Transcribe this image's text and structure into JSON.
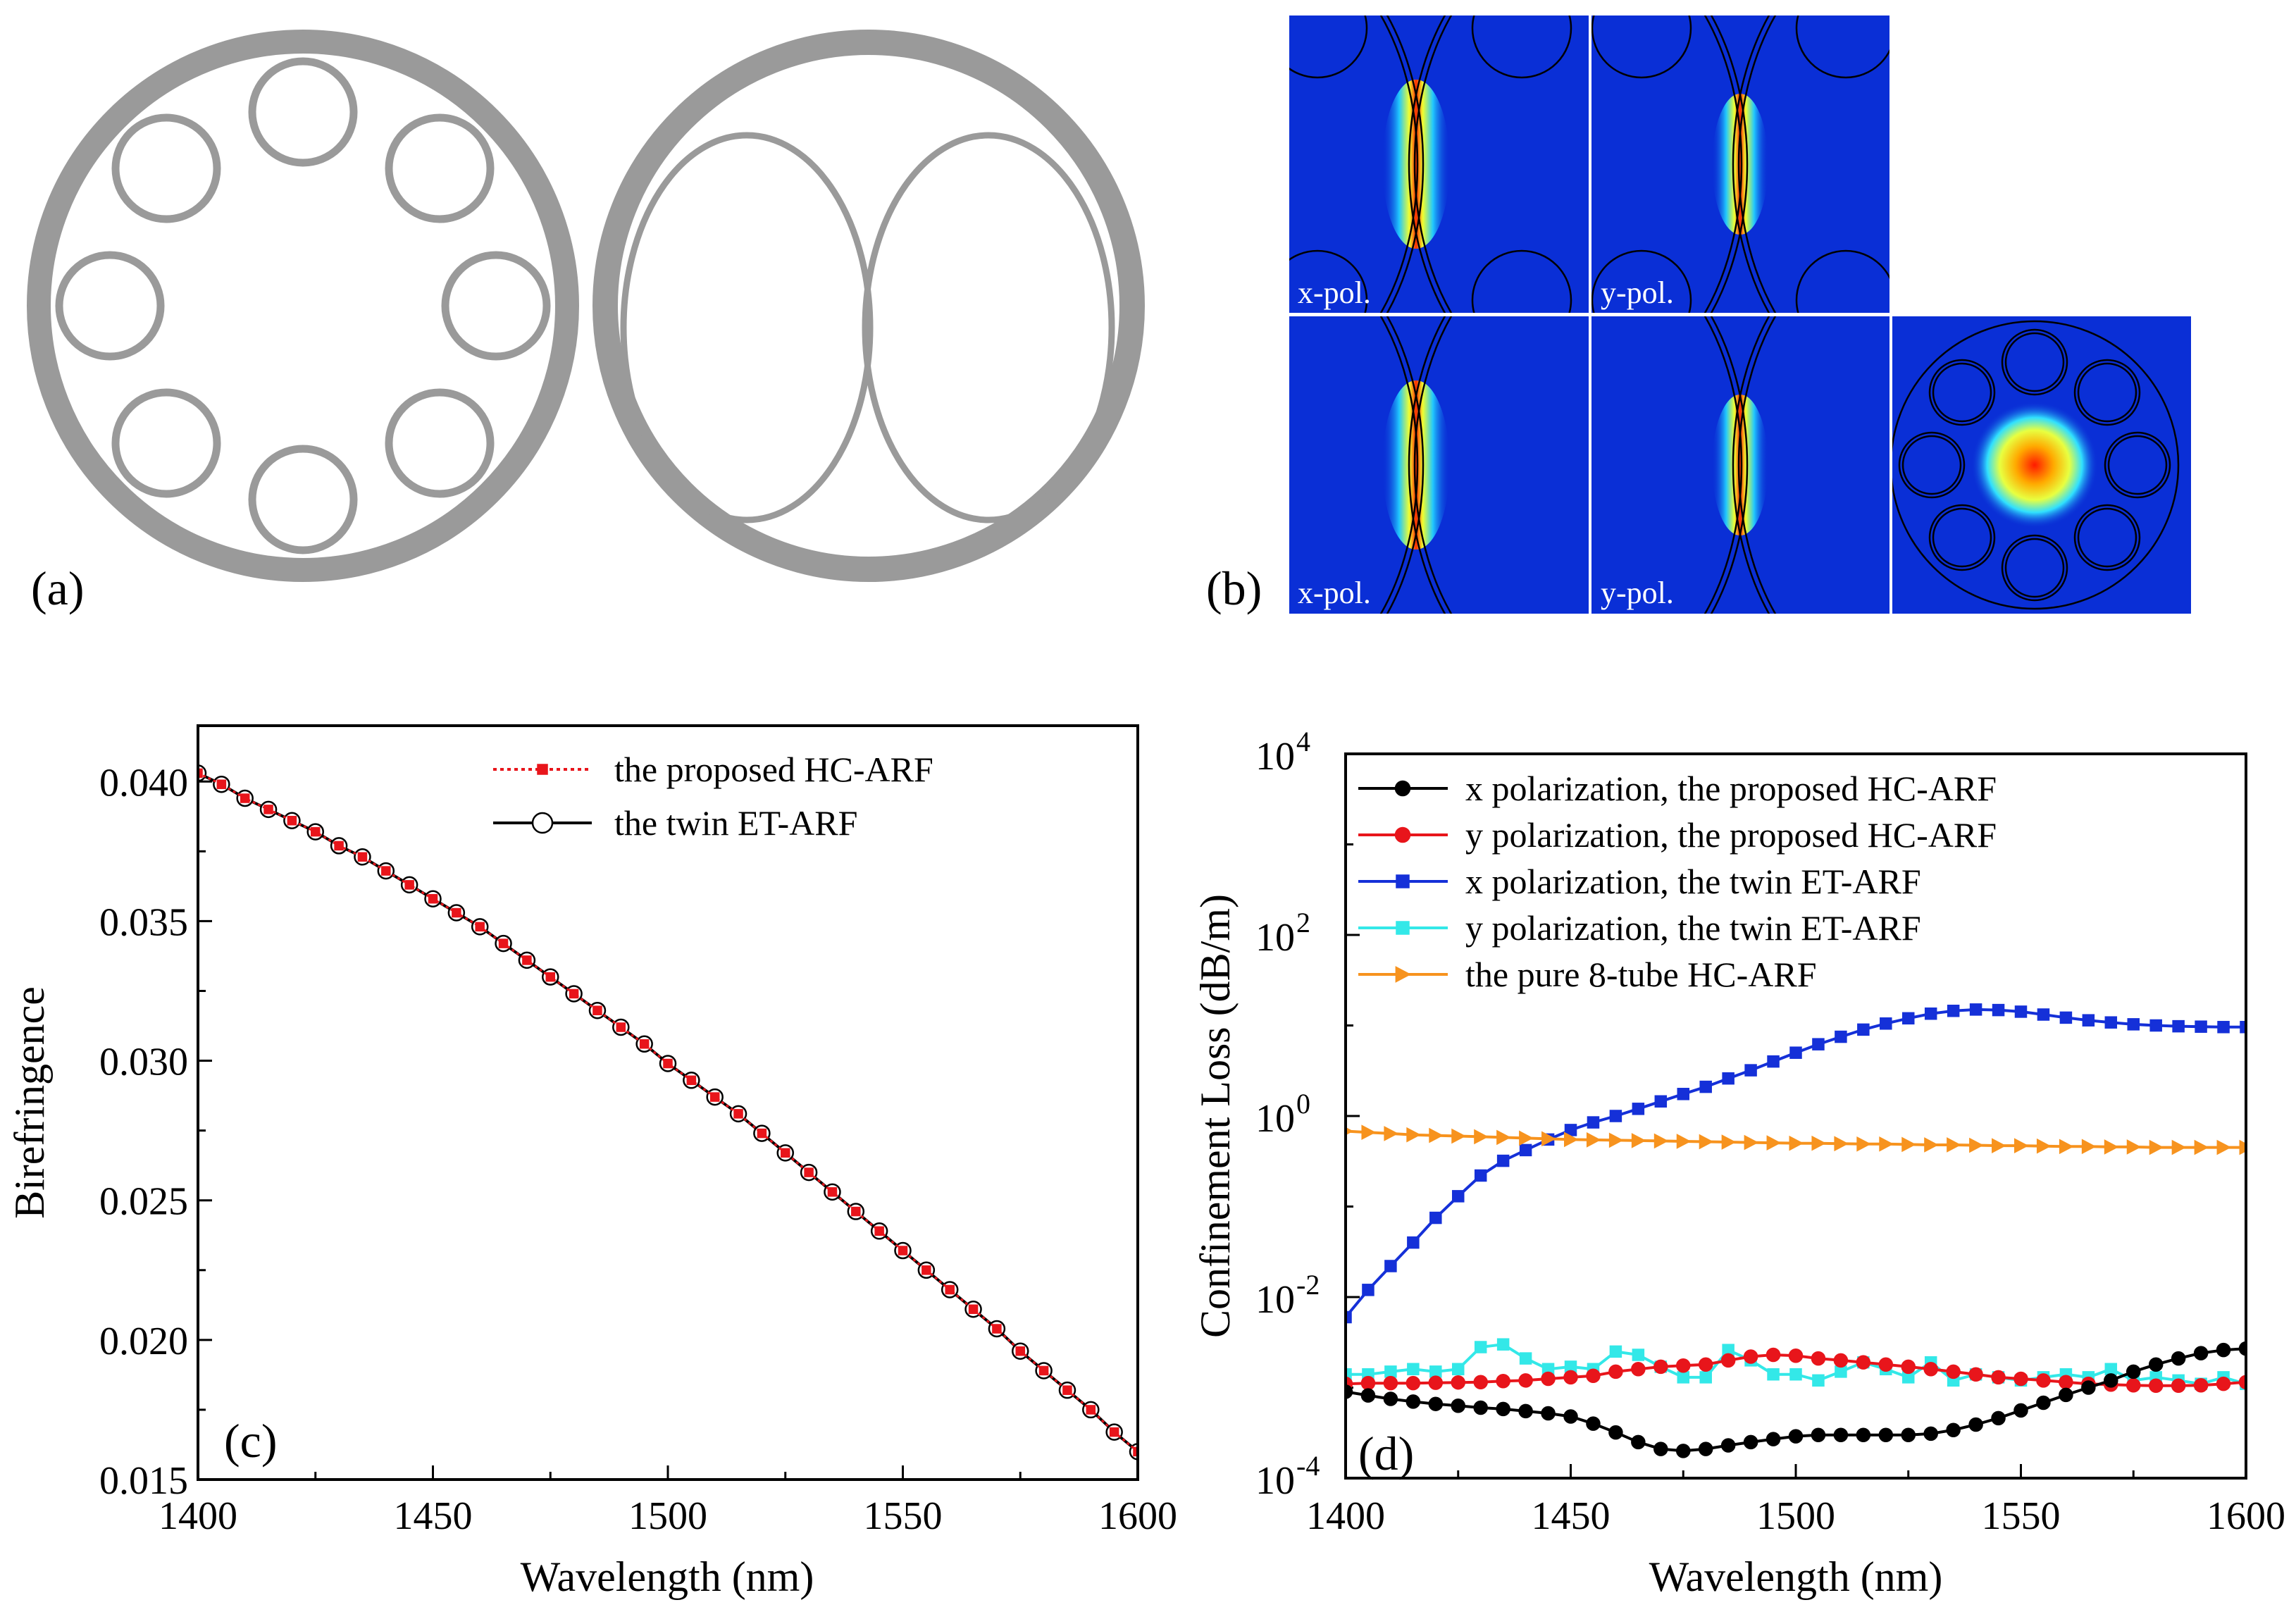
{
  "panels": {
    "a": {
      "label": "(a)"
    },
    "b": {
      "label": "(b)",
      "mode_labels": [
        "x-pol.",
        "y-pol.",
        "x-pol.",
        "y-pol."
      ]
    },
    "c": {
      "label": "(c)"
    },
    "d": {
      "label": "(d)"
    }
  },
  "colors": {
    "tube": "#9a9a9a",
    "field_bg": "#0a2fd6",
    "black": "#000000",
    "red": "#e8151b",
    "blue": "#1530d8",
    "cyan": "#33e8e8",
    "orange": "#f7931e"
  },
  "chart_data": [
    {
      "id": "c",
      "type": "line",
      "xlabel": "Wavelength (nm)",
      "ylabel": "Birefringence",
      "xlim": [
        1400,
        1600
      ],
      "ylim": [
        0.015,
        0.042
      ],
      "xticks": [
        1400,
        1450,
        1500,
        1550,
        1600
      ],
      "xtick_labels": [
        "1400",
        "1450",
        "1500",
        "1550",
        "1600"
      ],
      "yticks": [
        0.015,
        0.02,
        0.025,
        0.03,
        0.035,
        0.04
      ],
      "ytick_labels": [
        "0.015",
        "0.020",
        "0.025",
        "0.030",
        "0.035",
        "0.040"
      ],
      "x": [
        1400,
        1405,
        1410,
        1415,
        1420,
        1425,
        1430,
        1435,
        1440,
        1445,
        1450,
        1455,
        1460,
        1465,
        1470,
        1475,
        1480,
        1485,
        1490,
        1495,
        1500,
        1505,
        1510,
        1515,
        1520,
        1525,
        1530,
        1535,
        1540,
        1545,
        1550,
        1555,
        1560,
        1565,
        1570,
        1575,
        1580,
        1585,
        1590,
        1595,
        1600
      ],
      "series": [
        {
          "name": "the proposed HC-ARF",
          "values": [
            0.0403,
            0.0399,
            0.0394,
            0.039,
            0.0386,
            0.0382,
            0.0377,
            0.0373,
            0.0368,
            0.0363,
            0.0358,
            0.0353,
            0.0348,
            0.0342,
            0.0336,
            0.033,
            0.0324,
            0.0318,
            0.0312,
            0.0306,
            0.0299,
            0.0293,
            0.0287,
            0.0281,
            0.0274,
            0.0267,
            0.026,
            0.0253,
            0.0246,
            0.0239,
            0.0232,
            0.0225,
            0.0218,
            0.0211,
            0.0204,
            0.0196,
            0.0189,
            0.0182,
            0.0175,
            0.0167,
            0.016
          ]
        },
        {
          "name": "the twin ET-ARF",
          "values": [
            0.0403,
            0.0399,
            0.0394,
            0.039,
            0.0386,
            0.0382,
            0.0377,
            0.0373,
            0.0368,
            0.0363,
            0.0358,
            0.0353,
            0.0348,
            0.0342,
            0.0336,
            0.033,
            0.0324,
            0.0318,
            0.0312,
            0.0306,
            0.0299,
            0.0293,
            0.0287,
            0.0281,
            0.0274,
            0.0267,
            0.026,
            0.0253,
            0.0246,
            0.0239,
            0.0232,
            0.0225,
            0.0218,
            0.0211,
            0.0204,
            0.0196,
            0.0189,
            0.0182,
            0.0175,
            0.0167,
            0.016
          ]
        }
      ],
      "legend_position": "top-right"
    },
    {
      "id": "d",
      "type": "line",
      "yscale": "log",
      "xlabel": "Wavelength (nm)",
      "ylabel": "Confinement Loss (dB/m)",
      "xlim": [
        1400,
        1600
      ],
      "ylim": [
        0.0001,
        10000
      ],
      "xticks": [
        1400,
        1450,
        1500,
        1550,
        1600
      ],
      "xtick_labels": [
        "1400",
        "1450",
        "1500",
        "1550",
        "1600"
      ],
      "yticks": [
        0.0001,
        0.01,
        1,
        100,
        10000
      ],
      "ytick_labels": [
        {
          "base": "10",
          "exp": "-4"
        },
        {
          "base": "10",
          "exp": "-2"
        },
        {
          "base": "10",
          "exp": "0"
        },
        {
          "base": "10",
          "exp": "2"
        },
        {
          "base": "10",
          "exp": "4"
        }
      ],
      "x": [
        1400,
        1405,
        1410,
        1415,
        1420,
        1425,
        1430,
        1435,
        1440,
        1445,
        1450,
        1455,
        1460,
        1465,
        1470,
        1475,
        1480,
        1485,
        1490,
        1495,
        1500,
        1505,
        1510,
        1515,
        1520,
        1525,
        1530,
        1535,
        1540,
        1545,
        1550,
        1555,
        1560,
        1565,
        1570,
        1575,
        1580,
        1585,
        1590,
        1595,
        1600
      ],
      "series": [
        {
          "name": "x polarization, the proposed HC-ARF",
          "color": "#000000",
          "marker": "circle",
          "values": [
            0.0009,
            0.00082,
            0.00075,
            0.0007,
            0.00066,
            0.00063,
            0.0006,
            0.00058,
            0.00055,
            0.00052,
            0.00048,
            0.0004,
            0.00032,
            0.00025,
            0.00021,
            0.0002,
            0.00021,
            0.00023,
            0.00025,
            0.00027,
            0.00029,
            0.0003,
            0.0003,
            0.0003,
            0.0003,
            0.0003,
            0.00031,
            0.00034,
            0.00039,
            0.00046,
            0.00056,
            0.00068,
            0.00083,
            0.001,
            0.0012,
            0.0015,
            0.0018,
            0.0021,
            0.0024,
            0.0026,
            0.0027
          ]
        },
        {
          "name": "y polarization, the proposed HC-ARF",
          "color": "#e8151b",
          "marker": "circle",
          "values": [
            0.0011,
            0.00112,
            0.00112,
            0.00112,
            0.00113,
            0.00114,
            0.00115,
            0.00118,
            0.0012,
            0.00125,
            0.0013,
            0.00135,
            0.0015,
            0.0016,
            0.0017,
            0.00175,
            0.0018,
            0.002,
            0.0022,
            0.0023,
            0.00225,
            0.0021,
            0.002,
            0.0019,
            0.0018,
            0.0017,
            0.0016,
            0.0015,
            0.0014,
            0.0013,
            0.00125,
            0.0012,
            0.00115,
            0.0011,
            0.00108,
            0.00106,
            0.00105,
            0.00105,
            0.00106,
            0.0011,
            0.00115
          ]
        },
        {
          "name": "x polarization, the twin ET-ARF",
          "color": "#1530d8",
          "marker": "square",
          "values": [
            0.006,
            0.012,
            0.022,
            0.04,
            0.075,
            0.13,
            0.22,
            0.32,
            0.42,
            0.55,
            0.7,
            0.85,
            1.0,
            1.2,
            1.45,
            1.75,
            2.1,
            2.6,
            3.2,
            4.0,
            5.0,
            6.2,
            7.5,
            9.0,
            10.5,
            12.0,
            13.5,
            14.5,
            15.0,
            14.8,
            14.2,
            13.2,
            12.2,
            11.4,
            10.8,
            10.3,
            10.0,
            9.8,
            9.7,
            9.6,
            9.6
          ]
        },
        {
          "name": "y polarization, the twin ET-ARF",
          "color": "#33e8e8",
          "marker": "square",
          "values": [
            0.0014,
            0.0014,
            0.0015,
            0.0016,
            0.0015,
            0.0016,
            0.0028,
            0.003,
            0.0021,
            0.0016,
            0.0017,
            0.0016,
            0.0025,
            0.0023,
            0.0017,
            0.0013,
            0.0013,
            0.0026,
            0.002,
            0.0014,
            0.0014,
            0.0012,
            0.0015,
            0.0019,
            0.0016,
            0.0013,
            0.0019,
            0.0012,
            0.0014,
            0.0013,
            0.0012,
            0.0013,
            0.0014,
            0.0013,
            0.0016,
            0.0012,
            0.0013,
            0.0012,
            0.0011,
            0.0013,
            0.0011
          ]
        },
        {
          "name": "the pure 8-tube HC-ARF",
          "color": "#f7931e",
          "marker": "triangle-right",
          "values": [
            0.68,
            0.66,
            0.64,
            0.62,
            0.61,
            0.6,
            0.59,
            0.58,
            0.57,
            0.56,
            0.55,
            0.545,
            0.54,
            0.535,
            0.53,
            0.525,
            0.52,
            0.515,
            0.51,
            0.505,
            0.5,
            0.5,
            0.495,
            0.49,
            0.49,
            0.485,
            0.48,
            0.48,
            0.475,
            0.47,
            0.47,
            0.465,
            0.46,
            0.46,
            0.455,
            0.455,
            0.45,
            0.45,
            0.45,
            0.45,
            0.45
          ]
        }
      ],
      "legend_position": "top-left"
    }
  ]
}
